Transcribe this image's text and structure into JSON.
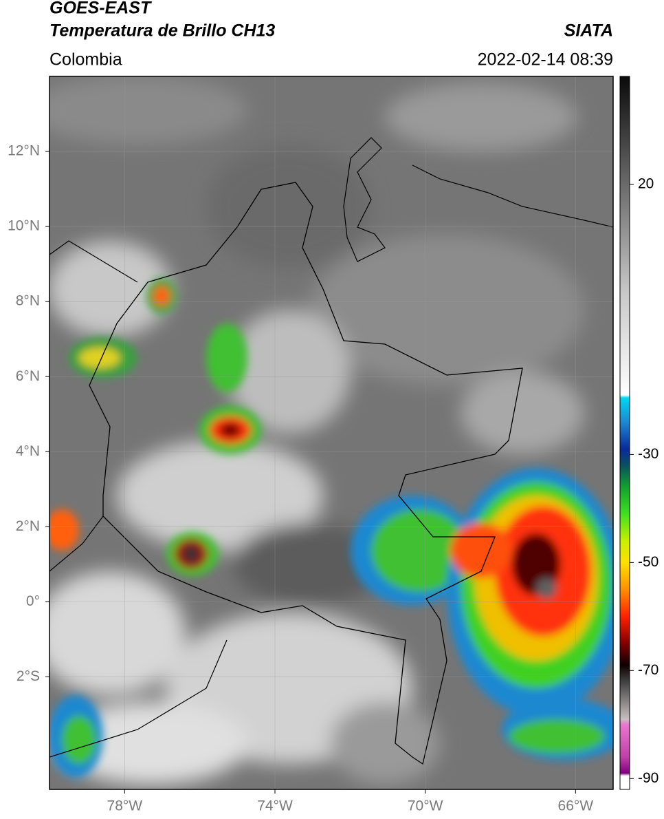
{
  "header": {
    "title": "GOES-EAST",
    "subtitle": "Temperatura de Brillo CH13",
    "source": "SIATA",
    "region": "Colombia",
    "datetime": "2022-02-14 08:39"
  },
  "map": {
    "xlim": [
      -80,
      -65
    ],
    "ylim": [
      -5,
      14
    ],
    "grid": true,
    "xticks": [
      {
        "value": -78,
        "label": "78°W"
      },
      {
        "value": -74,
        "label": "74°W"
      },
      {
        "value": -70,
        "label": "70°W"
      },
      {
        "value": -66,
        "label": "66°W"
      }
    ],
    "yticks": [
      {
        "value": 12,
        "label": "12°N"
      },
      {
        "value": 10,
        "label": "10°N"
      },
      {
        "value": 8,
        "label": "8°N"
      },
      {
        "value": 6,
        "label": "6°N"
      },
      {
        "value": 4,
        "label": "4°N"
      },
      {
        "value": 2,
        "label": "2°N"
      },
      {
        "value": 0,
        "label": "0°"
      },
      {
        "value": -2,
        "label": "2°S"
      }
    ]
  },
  "colorbar": {
    "lim": [
      -92,
      40
    ],
    "ticks": [
      20,
      -30,
      -50,
      -70,
      -90
    ],
    "stops": [
      {
        "value": 40,
        "color": "#0a0a0a"
      },
      {
        "value": 20,
        "color": "#6a6a6a"
      },
      {
        "value": 0,
        "color": "#c8c8c8"
      },
      {
        "value": -19,
        "color": "#ffffff"
      },
      {
        "value": -19.5,
        "color": "#00d8f0"
      },
      {
        "value": -24,
        "color": "#1e88d0"
      },
      {
        "value": -29,
        "color": "#0a2a9a"
      },
      {
        "value": -32,
        "color": "#0a5060"
      },
      {
        "value": -36,
        "color": "#12a030"
      },
      {
        "value": -41,
        "color": "#40e020"
      },
      {
        "value": -46,
        "color": "#c8f000"
      },
      {
        "value": -50,
        "color": "#ffe000"
      },
      {
        "value": -55,
        "color": "#ff9000"
      },
      {
        "value": -60,
        "color": "#ff2000"
      },
      {
        "value": -65,
        "color": "#800000"
      },
      {
        "value": -69,
        "color": "#100000"
      },
      {
        "value": -72,
        "color": "#404040"
      },
      {
        "value": -79,
        "color": "#c8c0c0"
      },
      {
        "value": -80,
        "color": "#e878d0"
      },
      {
        "value": -86,
        "color": "#c040a8"
      },
      {
        "value": -89,
        "color": "#800080"
      },
      {
        "value": -89.5,
        "color": "#ffffff"
      },
      {
        "value": -92,
        "color": "#ffffff"
      }
    ]
  }
}
